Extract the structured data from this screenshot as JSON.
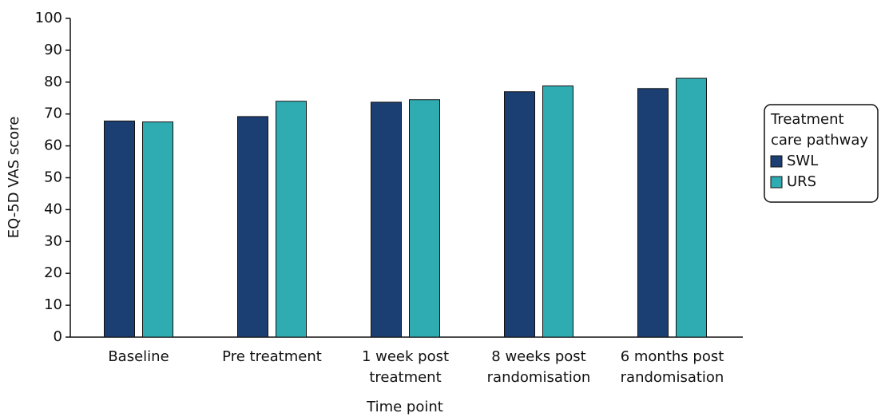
{
  "chart_data": {
    "type": "bar",
    "y_label": "EQ-5D VAS score",
    "x_label": "Time point",
    "categories": [
      [
        "Baseline"
      ],
      [
        "Pre treatment"
      ],
      [
        "1 week post",
        "treatment"
      ],
      [
        "8 weeks post",
        "randomisation"
      ],
      [
        "6 months post",
        "randomisation"
      ]
    ],
    "series": [
      {
        "name": "SWL",
        "color": "#1c3f73",
        "values": [
          67.8,
          69.2,
          73.7,
          77.0,
          78.0
        ]
      },
      {
        "name": "URS",
        "color": "#2fabb2",
        "values": [
          67.5,
          74.0,
          74.5,
          78.8,
          81.2
        ]
      }
    ],
    "legend_title": [
      "Treatment",
      "care pathway"
    ],
    "legend_position": "right",
    "ylim": [
      0,
      100
    ],
    "yticks": [
      0,
      10,
      20,
      30,
      40,
      50,
      60,
      70,
      80,
      90,
      100
    ]
  }
}
